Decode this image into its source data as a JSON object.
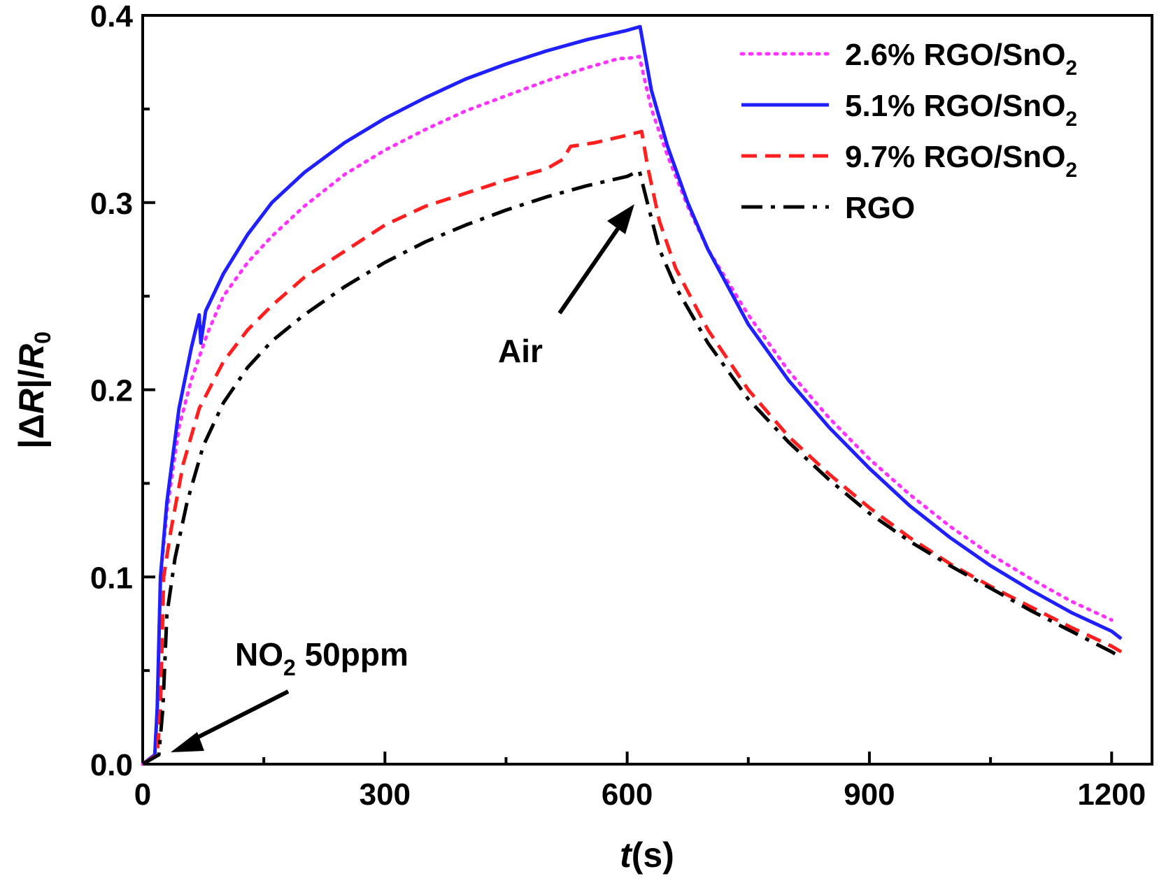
{
  "chart_data": {
    "type": "line",
    "title": "",
    "xlabel": {
      "italic": "t",
      "rest": "(s)"
    },
    "ylabel": {
      "pre": "|Δ",
      "italic1": "R",
      "mid": "|/",
      "italic2": "R",
      "sub": "0"
    },
    "xlim": [
      0,
      1250
    ],
    "ylim": [
      0,
      0.4
    ],
    "xticks": [
      0,
      300,
      600,
      900,
      1200
    ],
    "xtick_labels": [
      "0",
      "300",
      "600",
      "900",
      "1200"
    ],
    "yticks": [
      0.0,
      0.1,
      0.2,
      0.3,
      0.4
    ],
    "ytick_labels": [
      "0.0",
      "0.1",
      "0.2",
      "0.3",
      "0.4"
    ],
    "grid": false,
    "legend_position": "top-right",
    "series": [
      {
        "name": "2.6% RGO/SnO2",
        "label_main": "2.6% RGO/SnO",
        "label_sub": "2",
        "color": "#ff33ff",
        "style": "dotted",
        "points": [
          [
            0,
            0
          ],
          [
            15,
            0.005
          ],
          [
            18,
            0.03
          ],
          [
            22,
            0.1
          ],
          [
            30,
            0.135
          ],
          [
            45,
            0.18
          ],
          [
            60,
            0.205
          ],
          [
            80,
            0.23
          ],
          [
            100,
            0.25
          ],
          [
            130,
            0.268
          ],
          [
            160,
            0.282
          ],
          [
            200,
            0.298
          ],
          [
            250,
            0.315
          ],
          [
            300,
            0.328
          ],
          [
            350,
            0.339
          ],
          [
            400,
            0.349
          ],
          [
            450,
            0.357
          ],
          [
            500,
            0.365
          ],
          [
            550,
            0.372
          ],
          [
            590,
            0.377
          ],
          [
            600,
            0.377
          ],
          [
            615,
            0.378
          ],
          [
            630,
            0.35
          ],
          [
            650,
            0.325
          ],
          [
            675,
            0.298
          ],
          [
            700,
            0.275
          ],
          [
            750,
            0.24
          ],
          [
            800,
            0.21
          ],
          [
            850,
            0.185
          ],
          [
            900,
            0.163
          ],
          [
            950,
            0.144
          ],
          [
            1000,
            0.127
          ],
          [
            1050,
            0.112
          ],
          [
            1100,
            0.099
          ],
          [
            1150,
            0.087
          ],
          [
            1200,
            0.077
          ]
        ]
      },
      {
        "name": "5.1% RGO/SnO2",
        "label_main": "5.1% RGO/SnO",
        "label_sub": "2",
        "color": "#1f1fff",
        "style": "solid",
        "points": [
          [
            0,
            0
          ],
          [
            15,
            0.005
          ],
          [
            18,
            0.03
          ],
          [
            22,
            0.1
          ],
          [
            30,
            0.14
          ],
          [
            45,
            0.19
          ],
          [
            60,
            0.222
          ],
          [
            70,
            0.24
          ],
          [
            72,
            0.225
          ],
          [
            78,
            0.242
          ],
          [
            100,
            0.262
          ],
          [
            130,
            0.283
          ],
          [
            160,
            0.3
          ],
          [
            200,
            0.316
          ],
          [
            250,
            0.332
          ],
          [
            300,
            0.345
          ],
          [
            350,
            0.356
          ],
          [
            400,
            0.366
          ],
          [
            450,
            0.374
          ],
          [
            500,
            0.381
          ],
          [
            550,
            0.387
          ],
          [
            600,
            0.392
          ],
          [
            616,
            0.394
          ],
          [
            630,
            0.36
          ],
          [
            650,
            0.33
          ],
          [
            675,
            0.3
          ],
          [
            700,
            0.275
          ],
          [
            750,
            0.235
          ],
          [
            800,
            0.205
          ],
          [
            850,
            0.18
          ],
          [
            900,
            0.158
          ],
          [
            950,
            0.138
          ],
          [
            1000,
            0.121
          ],
          [
            1050,
            0.106
          ],
          [
            1100,
            0.093
          ],
          [
            1150,
            0.081
          ],
          [
            1200,
            0.071
          ],
          [
            1212,
            0.067
          ]
        ]
      },
      {
        "name": "9.7% RGO/SnO2",
        "label_main": "9.7% RGO/SnO",
        "label_sub": "2",
        "color": "#ff1f1f",
        "style": "dashed",
        "points": [
          [
            0,
            0
          ],
          [
            18,
            0.005
          ],
          [
            22,
            0.03
          ],
          [
            26,
            0.1
          ],
          [
            35,
            0.125
          ],
          [
            50,
            0.16
          ],
          [
            70,
            0.19
          ],
          [
            100,
            0.215
          ],
          [
            130,
            0.232
          ],
          [
            160,
            0.245
          ],
          [
            200,
            0.26
          ],
          [
            250,
            0.274
          ],
          [
            300,
            0.288
          ],
          [
            350,
            0.298
          ],
          [
            400,
            0.305
          ],
          [
            450,
            0.312
          ],
          [
            500,
            0.318
          ],
          [
            520,
            0.323
          ],
          [
            530,
            0.33
          ],
          [
            560,
            0.332
          ],
          [
            600,
            0.336
          ],
          [
            618,
            0.338
          ],
          [
            625,
            0.32
          ],
          [
            640,
            0.29
          ],
          [
            660,
            0.265
          ],
          [
            700,
            0.232
          ],
          [
            750,
            0.2
          ],
          [
            800,
            0.175
          ],
          [
            850,
            0.155
          ],
          [
            900,
            0.137
          ],
          [
            950,
            0.121
          ],
          [
            1000,
            0.107
          ],
          [
            1050,
            0.095
          ],
          [
            1100,
            0.084
          ],
          [
            1150,
            0.073
          ],
          [
            1200,
            0.063
          ],
          [
            1212,
            0.06
          ]
        ]
      },
      {
        "name": "RGO",
        "label_main": "RGO",
        "label_sub": "",
        "color": "#000000",
        "style": "dashdot",
        "points": [
          [
            0,
            0
          ],
          [
            20,
            0.005
          ],
          [
            25,
            0.03
          ],
          [
            30,
            0.08
          ],
          [
            40,
            0.11
          ],
          [
            55,
            0.14
          ],
          [
            75,
            0.17
          ],
          [
            100,
            0.193
          ],
          [
            130,
            0.212
          ],
          [
            160,
            0.226
          ],
          [
            200,
            0.24
          ],
          [
            250,
            0.255
          ],
          [
            300,
            0.268
          ],
          [
            350,
            0.279
          ],
          [
            400,
            0.288
          ],
          [
            450,
            0.296
          ],
          [
            500,
            0.303
          ],
          [
            550,
            0.309
          ],
          [
            600,
            0.314
          ],
          [
            615,
            0.317
          ],
          [
            625,
            0.3
          ],
          [
            640,
            0.275
          ],
          [
            660,
            0.255
          ],
          [
            700,
            0.225
          ],
          [
            750,
            0.195
          ],
          [
            800,
            0.172
          ],
          [
            850,
            0.152
          ],
          [
            900,
            0.134
          ],
          [
            950,
            0.119
          ],
          [
            1000,
            0.106
          ],
          [
            1050,
            0.094
          ],
          [
            1100,
            0.082
          ],
          [
            1150,
            0.071
          ],
          [
            1200,
            0.06
          ],
          [
            1212,
            0.057
          ]
        ]
      }
    ],
    "annotations": [
      {
        "id": "no2",
        "text_main": "NO",
        "text_sub": "2",
        "text_rest": " 50ppm"
      },
      {
        "id": "air",
        "text": "Air"
      }
    ]
  }
}
